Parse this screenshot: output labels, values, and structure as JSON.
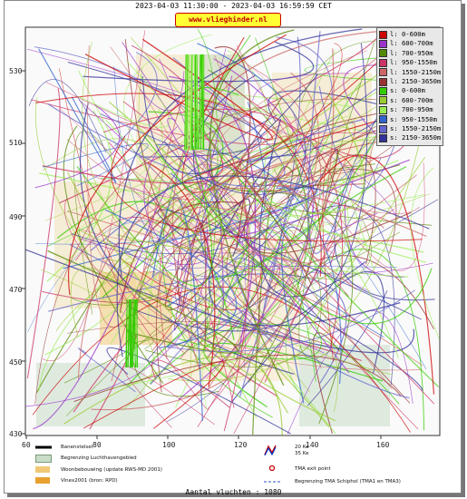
{
  "header": {
    "title": "2023-04-03 11:30:00 - 2023-04-03 16:59:59 CET",
    "brand": "www.vlieghinder.nl"
  },
  "axes": {
    "y_ticks": [
      "530",
      "510",
      "490",
      "470",
      "450",
      "430"
    ],
    "x_ticks": [
      "60",
      "80",
      "100",
      "120",
      "140",
      "160"
    ]
  },
  "legend": [
    {
      "label": "l: 0-600m",
      "color": "#cc0000"
    },
    {
      "label": "l: 600-700m",
      "color": "#9933cc"
    },
    {
      "label": "l: 700-950m",
      "color": "#558800"
    },
    {
      "label": "l: 950-1550m",
      "color": "#cc3366"
    },
    {
      "label": "l: 1550-2150m",
      "color": "#cc6666"
    },
    {
      "label": "l: 2150-3650m",
      "color": "#993333"
    },
    {
      "label": "s: 0-600m",
      "color": "#33cc00"
    },
    {
      "label": "s: 600-700m",
      "color": "#99cc33"
    },
    {
      "label": "s: 700-950m",
      "color": "#99ee55"
    },
    {
      "label": "s: 950-1550m",
      "color": "#3366cc"
    },
    {
      "label": "s: 1550-2150m",
      "color": "#6666cc"
    },
    {
      "label": "s: 2150-3650m",
      "color": "#333399"
    }
  ],
  "bottom_legend": {
    "runway": "Banenstelsel",
    "airport_boundary": "Begrenzing Luchthavengebied",
    "housing": "Woonbebouwing (update RWS-MD 2001)",
    "vinex": "Vinex2001 (bron: RPD)",
    "kw20": "20 Ke",
    "kw35": "35 Ke",
    "tma_exit": "TMA exit point",
    "tma_boundary": "Begrenzing TMA Schiphol  (TMA1 en TMA3)"
  },
  "footer": {
    "count": "Aantal vluchten : 1080"
  }
}
